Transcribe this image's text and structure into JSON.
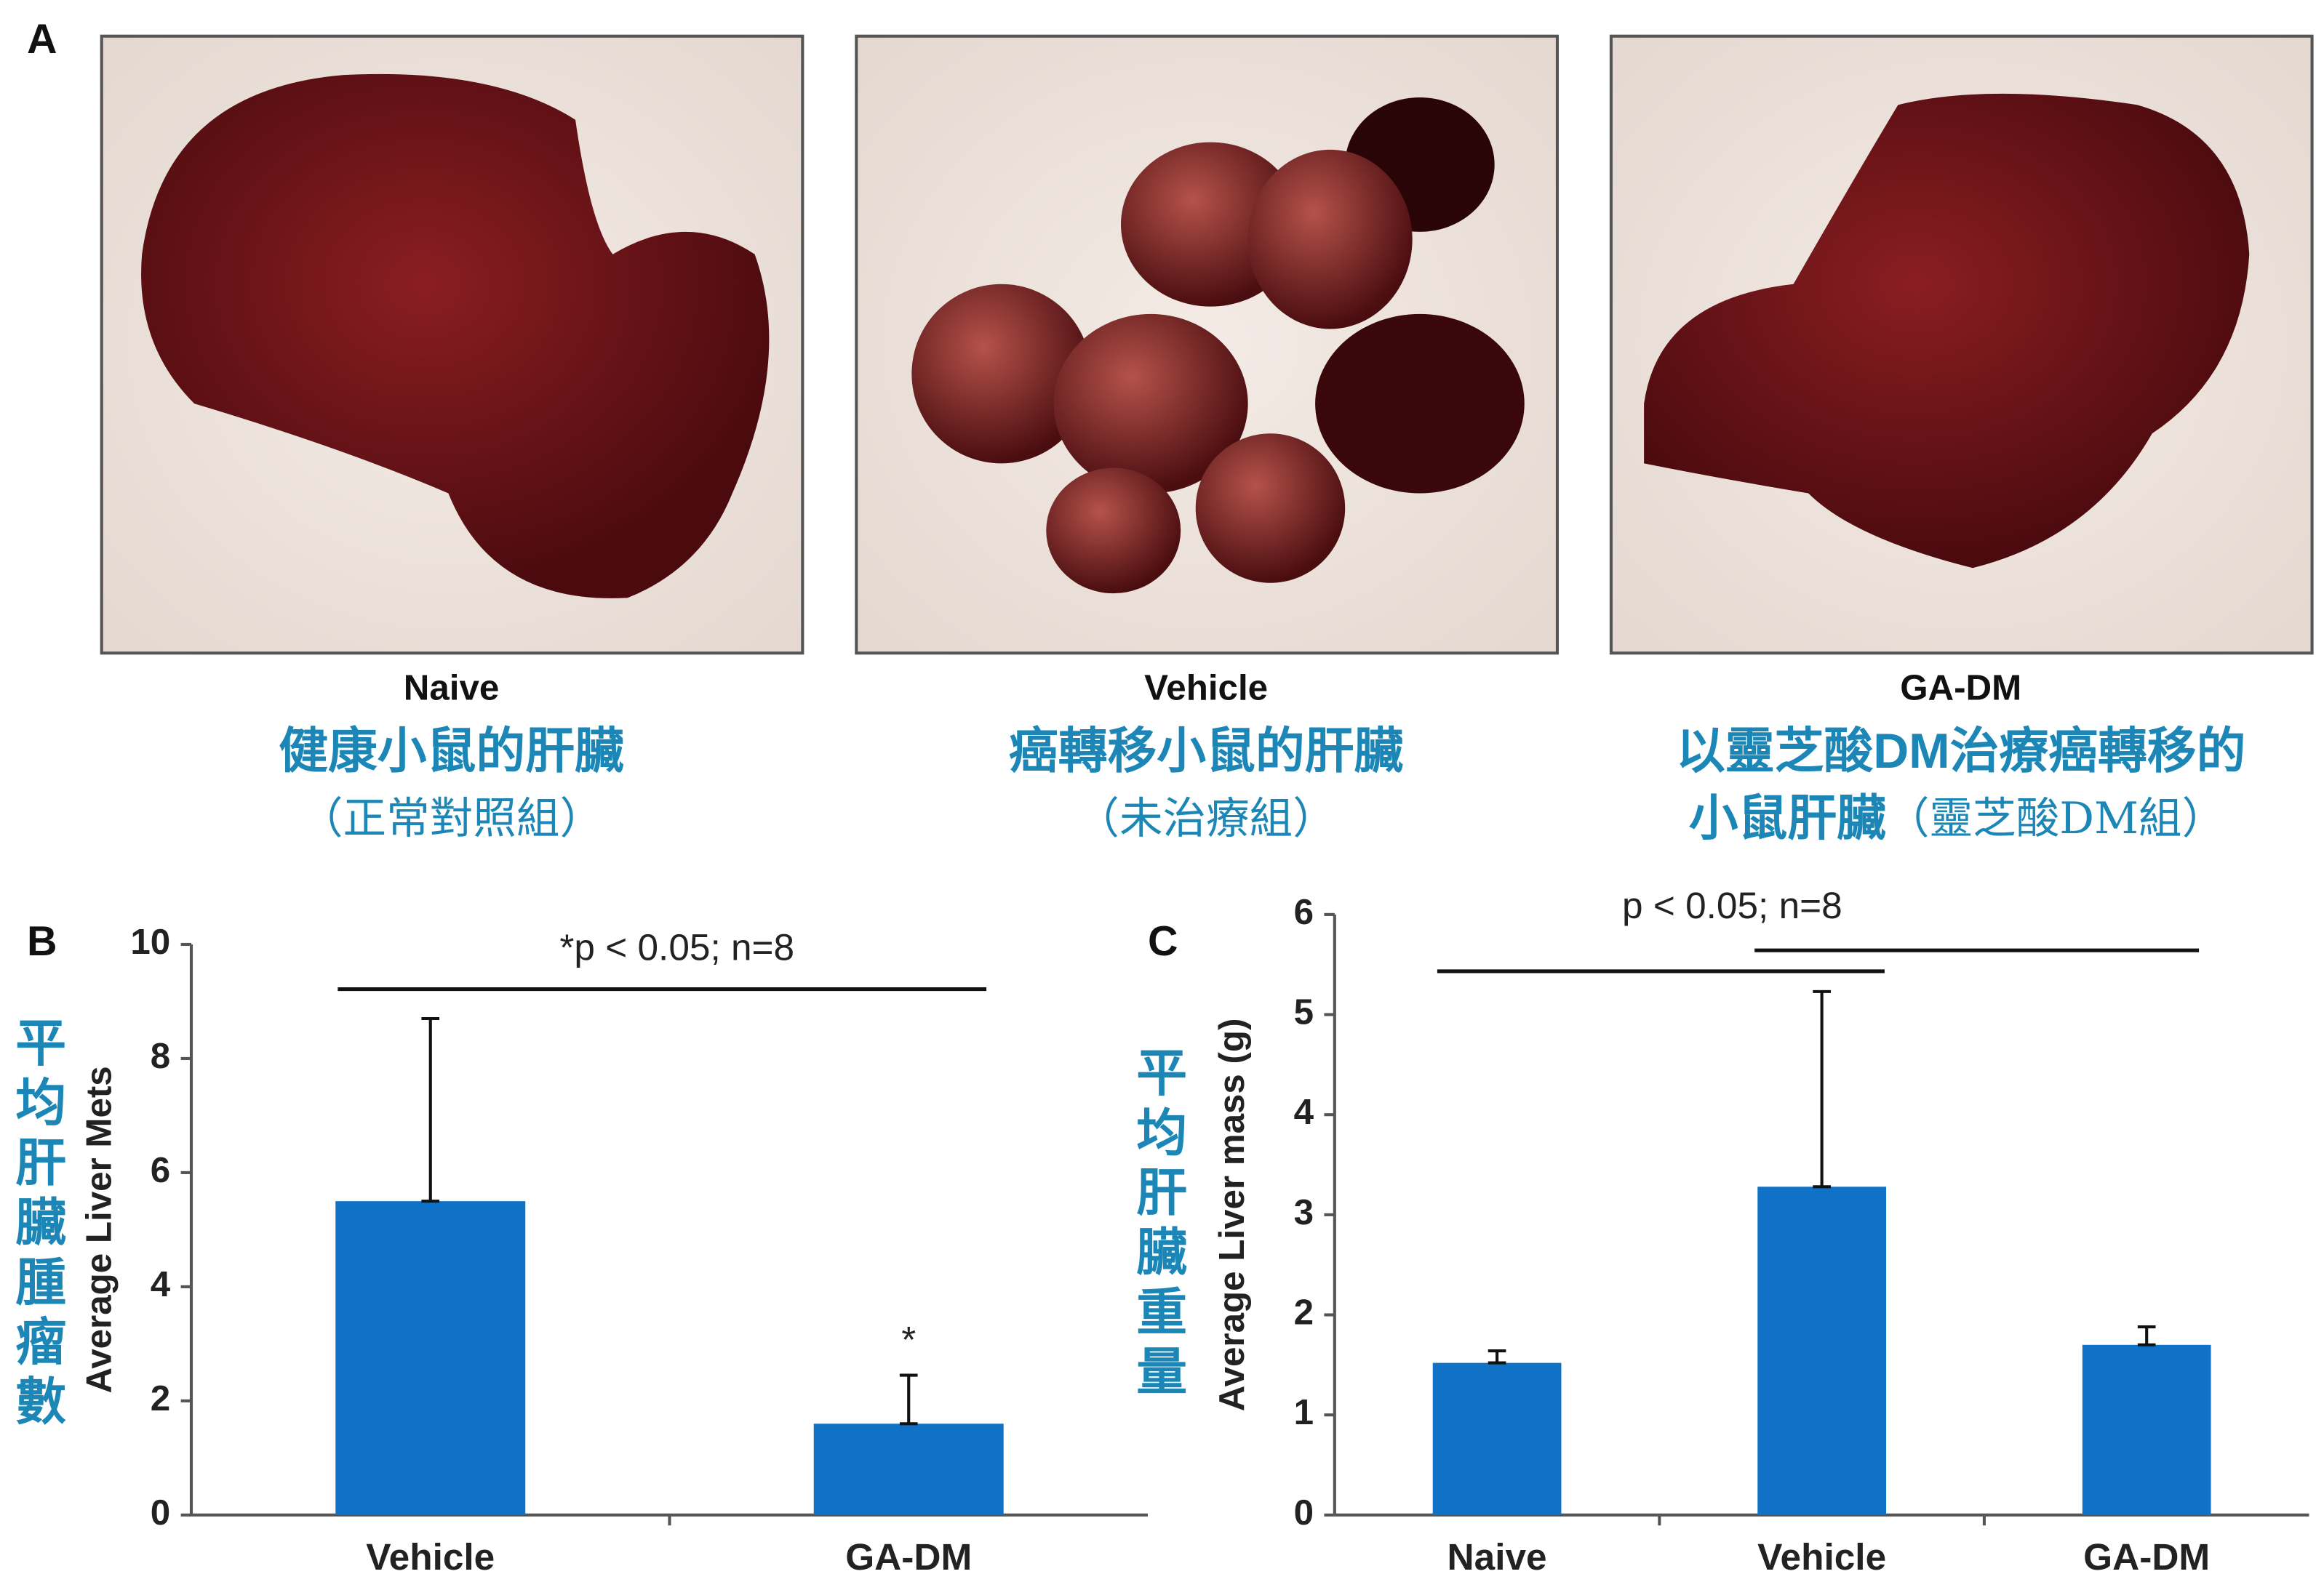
{
  "panel_a": {
    "label": "A",
    "photos": [
      {
        "label": "Naive",
        "caption": "健康小鼠的肝臟",
        "note": "（正常對照組）"
      },
      {
        "label": "Vehicle",
        "caption": "癌轉移小鼠的肝臟",
        "note": "（未治療組）"
      },
      {
        "label": "GA-DM",
        "caption": "以靈芝酸DM治療癌轉移的",
        "caption_2": "小鼠肝臟",
        "note": "（靈芝酸DM組）"
      }
    ]
  },
  "chart_data": [
    {
      "type": "bar",
      "panel_label": "B",
      "annotation": "*p < 0.05; n=8",
      "y_label": "Average Liver Mets",
      "y_label_zh": "平均肝臟腫瘤數",
      "categories": [
        "Vehicle",
        "GA-DM"
      ],
      "values": [
        5.5,
        1.6
      ],
      "errors": [
        3.2,
        0.85
      ],
      "markers": [
        {
          "category": "GA-DM",
          "text": "*"
        }
      ],
      "color": "#0f72c6",
      "ylim": [
        0,
        10
      ],
      "yticks": [
        0,
        2,
        4,
        6,
        8,
        10
      ]
    },
    {
      "type": "bar",
      "panel_label": "C",
      "annotation": "p < 0.05; n=8",
      "y_label": "Average Liver mass (g)",
      "y_label_zh": "平均肝臟重量",
      "categories": [
        "Naive",
        "Vehicle",
        "GA-DM"
      ],
      "values": [
        1.52,
        3.28,
        1.7
      ],
      "errors": [
        0.12,
        1.95,
        0.18
      ],
      "color": "#0f72c6",
      "ylim": [
        0,
        6
      ],
      "yticks": [
        0,
        1,
        2,
        3,
        4,
        5,
        6
      ]
    }
  ]
}
